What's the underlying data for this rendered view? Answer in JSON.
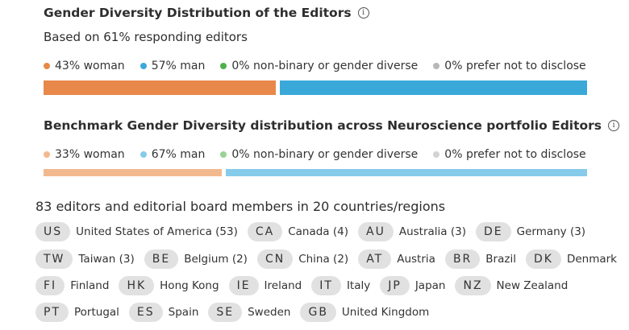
{
  "section1": {
    "title": "Gender Diversity Distribution of the Editors",
    "subtitle": "Based on 61% responding editors",
    "legend": [
      {
        "label": "43% woman",
        "color": "#e8884a"
      },
      {
        "label": "57% man",
        "color": "#3aa9d9"
      },
      {
        "label": "0% non-binary or gender diverse",
        "color": "#4fb04a"
      },
      {
        "label": "0% prefer not to disclose",
        "color": "#b7b7b7"
      }
    ],
    "bar": [
      {
        "name": "woman",
        "fraction": 0.43,
        "color": "#e8884a"
      },
      {
        "name": "man",
        "fraction": 0.57,
        "color": "#3aa9d9"
      }
    ]
  },
  "section2": {
    "title": "Benchmark Gender Diversity distribution across Neuroscience portfolio Editors",
    "legend": [
      {
        "label": "33% woman",
        "color": "#f2b98f"
      },
      {
        "label": "67% man",
        "color": "#86cbe9"
      },
      {
        "label": "0% non-binary or gender diverse",
        "color": "#9ad295"
      },
      {
        "label": "0% prefer not to disclose",
        "color": "#d3d3d3"
      }
    ],
    "bar": [
      {
        "name": "woman",
        "fraction": 0.33,
        "color": "#f2b98f"
      },
      {
        "name": "man",
        "fraction": 0.67,
        "color": "#86cbe9"
      }
    ]
  },
  "countries": {
    "heading": "83 editors and editorial board members in 20 countries/regions",
    "rows": [
      [
        {
          "code": "US",
          "name": "United States of America (53)"
        },
        {
          "code": "CA",
          "name": "Canada (4)"
        },
        {
          "code": "AU",
          "name": "Australia (3)"
        },
        {
          "code": "DE",
          "name": "Germany (3)"
        }
      ],
      [
        {
          "code": "TW",
          "name": "Taiwan (3)"
        },
        {
          "code": "BE",
          "name": "Belgium (2)"
        },
        {
          "code": "CN",
          "name": "China (2)"
        },
        {
          "code": "AT",
          "name": "Austria"
        },
        {
          "code": "BR",
          "name": "Brazil"
        },
        {
          "code": "DK",
          "name": "Denmark"
        }
      ],
      [
        {
          "code": "FI",
          "name": "Finland"
        },
        {
          "code": "HK",
          "name": "Hong Kong"
        },
        {
          "code": "IE",
          "name": "Ireland"
        },
        {
          "code": "IT",
          "name": "Italy"
        },
        {
          "code": "JP",
          "name": "Japan"
        },
        {
          "code": "NZ",
          "name": "New Zealand"
        }
      ],
      [
        {
          "code": "PT",
          "name": "Portugal"
        },
        {
          "code": "ES",
          "name": "Spain"
        },
        {
          "code": "SE",
          "name": "Sweden"
        },
        {
          "code": "GB",
          "name": "United Kingdom"
        }
      ]
    ]
  }
}
